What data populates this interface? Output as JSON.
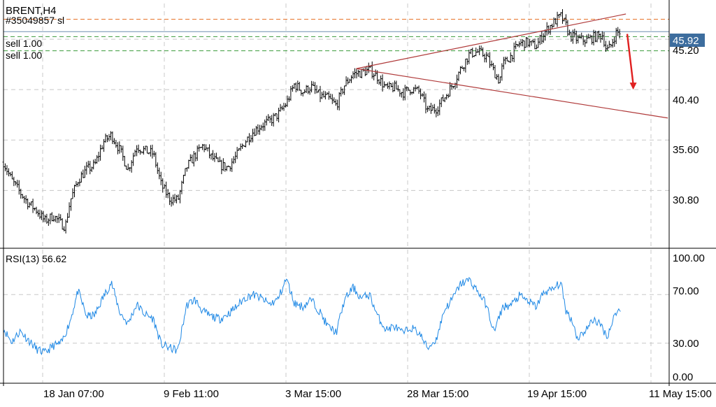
{
  "header": {
    "symbol_timeframe": "BRENT,H4",
    "order_line_label": "#35049857 sl"
  },
  "price_panel": {
    "current_price": "45.92",
    "price_labels": [
      "45.20",
      "40.40",
      "35.60",
      "30.80"
    ],
    "order_labels": [
      "sell 1.00",
      "sell 1.00"
    ],
    "colors": {
      "bar": "#000000",
      "sl_line": "#e8742a",
      "bid_line": "#6f8fb0",
      "order_line": "#3a9a3a",
      "trendline": "#b03a3a",
      "arrow": "#e02020",
      "price_tag": "#3d6d9e"
    }
  },
  "rsi_panel": {
    "label": "RSI(13) 56.62",
    "levels": [
      "100.00",
      "70.00",
      "30.00",
      "0.00"
    ],
    "line_color": "#1e88e5"
  },
  "time_axis": {
    "labels": [
      "18 Jan 07:00",
      "9 Feb 11:00",
      "3 Mar 15:00",
      "28 Mar 15:00",
      "19 Apr 15:00",
      "11 May 15:00"
    ]
  },
  "chart_data": {
    "type": "line",
    "price": {
      "ylim": [
        25.5,
        48.6
      ],
      "horizontal_levels": {
        "stop_loss": 47.1,
        "bid": 45.92,
        "sell_orders": [
          45.45,
          44.1
        ]
      },
      "close_points": [
        [
          0,
          33.5
        ],
        [
          12,
          31.8
        ],
        [
          25,
          30.6
        ],
        [
          37,
          29.6
        ],
        [
          50,
          28.9
        ],
        [
          62,
          27.9
        ],
        [
          75,
          28.4
        ],
        [
          87,
          27.6
        ],
        [
          93,
          27.4
        ],
        [
          100,
          29.8
        ],
        [
          112,
          31.8
        ],
        [
          125,
          32.8
        ],
        [
          137,
          33.2
        ],
        [
          150,
          35.4
        ],
        [
          162,
          36.1
        ],
        [
          175,
          34.6
        ],
        [
          187,
          32.8
        ],
        [
          200,
          35.0
        ],
        [
          212,
          34.6
        ],
        [
          225,
          34.3
        ],
        [
          237,
          31.3
        ],
        [
          250,
          30.0
        ],
        [
          262,
          29.9
        ],
        [
          275,
          33.0
        ],
        [
          287,
          34.1
        ],
        [
          300,
          35.1
        ],
        [
          312,
          34.0
        ],
        [
          325,
          33.2
        ],
        [
          337,
          33.0
        ],
        [
          350,
          34.1
        ],
        [
          362,
          35.4
        ],
        [
          375,
          36.4
        ],
        [
          387,
          37.0
        ],
        [
          400,
          37.4
        ],
        [
          412,
          38.0
        ],
        [
          425,
          39.1
        ],
        [
          437,
          40.9
        ],
        [
          450,
          40.2
        ],
        [
          462,
          40.7
        ],
        [
          475,
          39.8
        ],
        [
          487,
          39.6
        ],
        [
          500,
          38.9
        ],
        [
          512,
          40.8
        ],
        [
          525,
          41.9
        ],
        [
          537,
          42.0
        ],
        [
          550,
          42.3
        ],
        [
          562,
          41.6
        ],
        [
          575,
          40.5
        ],
        [
          587,
          40.6
        ],
        [
          600,
          40.1
        ],
        [
          612,
          40.5
        ],
        [
          625,
          40.2
        ],
        [
          637,
          38.4
        ],
        [
          650,
          38.6
        ],
        [
          662,
          39.6
        ],
        [
          675,
          40.9
        ],
        [
          687,
          42.4
        ],
        [
          700,
          43.8
        ],
        [
          712,
          44.0
        ],
        [
          725,
          43.6
        ],
        [
          737,
          42.1
        ],
        [
          745,
          41.2
        ],
        [
          750,
          42.8
        ],
        [
          762,
          43.6
        ],
        [
          775,
          44.8
        ],
        [
          787,
          44.9
        ],
        [
          800,
          44.5
        ],
        [
          812,
          45.8
        ],
        [
          825,
          46.7
        ],
        [
          837,
          47.4
        ],
        [
          845,
          46.5
        ],
        [
          850,
          45.6
        ],
        [
          862,
          45.2
        ],
        [
          875,
          45.1
        ],
        [
          887,
          45.4
        ],
        [
          900,
          45.6
        ],
        [
          906,
          44.1
        ],
        [
          912,
          44.5
        ],
        [
          920,
          45.8
        ],
        [
          928,
          45.9
        ]
      ],
      "trendlines": [
        {
          "from": [
            530,
            42.4
          ],
          "to": [
            935,
            47.6
          ]
        },
        {
          "from": [
            530,
            42.4
          ],
          "to": [
            998,
            37.7
          ]
        }
      ],
      "forecast_arrow": {
        "from": [
          937,
          45.7
        ],
        "to": [
          946,
          40.4
        ]
      }
    },
    "rsi": {
      "ylim": [
        0,
        100
      ],
      "levels": [
        70,
        30
      ],
      "points": [
        [
          0,
          42
        ],
        [
          12,
          31
        ],
        [
          25,
          40
        ],
        [
          37,
          33
        ],
        [
          50,
          25
        ],
        [
          62,
          22
        ],
        [
          75,
          28
        ],
        [
          87,
          30
        ],
        [
          100,
          48
        ],
        [
          112,
          73
        ],
        [
          125,
          52
        ],
        [
          137,
          53
        ],
        [
          150,
          68
        ],
        [
          162,
          80
        ],
        [
          175,
          55
        ],
        [
          187,
          46
        ],
        [
          200,
          62
        ],
        [
          212,
          54
        ],
        [
          225,
          50
        ],
        [
          237,
          29
        ],
        [
          250,
          26
        ],
        [
          262,
          24
        ],
        [
          275,
          61
        ],
        [
          287,
          66
        ],
        [
          300,
          56
        ],
        [
          312,
          52
        ],
        [
          325,
          50
        ],
        [
          337,
          54
        ],
        [
          350,
          60
        ],
        [
          362,
          67
        ],
        [
          375,
          70
        ],
        [
          387,
          67
        ],
        [
          400,
          62
        ],
        [
          412,
          66
        ],
        [
          425,
          83
        ],
        [
          437,
          63
        ],
        [
          450,
          60
        ],
        [
          462,
          66
        ],
        [
          475,
          56
        ],
        [
          487,
          44
        ],
        [
          500,
          39
        ],
        [
          512,
          65
        ],
        [
          525,
          76
        ],
        [
          537,
          67
        ],
        [
          550,
          70
        ],
        [
          562,
          52
        ],
        [
          575,
          41
        ],
        [
          587,
          44
        ],
        [
          600,
          38
        ],
        [
          612,
          43
        ],
        [
          625,
          38
        ],
        [
          637,
          26
        ],
        [
          650,
          33
        ],
        [
          662,
          57
        ],
        [
          675,
          67
        ],
        [
          687,
          79
        ],
        [
          700,
          82
        ],
        [
          712,
          73
        ],
        [
          725,
          62
        ],
        [
          737,
          39
        ],
        [
          750,
          60
        ],
        [
          762,
          61
        ],
        [
          775,
          69
        ],
        [
          787,
          65
        ],
        [
          800,
          60
        ],
        [
          812,
          72
        ],
        [
          825,
          74
        ],
        [
          837,
          80
        ],
        [
          845,
          57
        ],
        [
          855,
          48
        ],
        [
          862,
          34
        ],
        [
          875,
          41
        ],
        [
          887,
          50
        ],
        [
          900,
          43
        ],
        [
          906,
          35
        ],
        [
          912,
          43
        ],
        [
          920,
          56
        ],
        [
          928,
          57
        ]
      ]
    }
  }
}
